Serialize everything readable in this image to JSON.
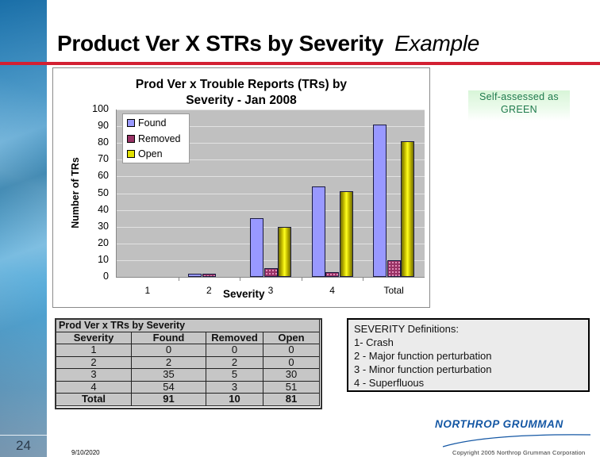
{
  "slide": {
    "title": "Product Ver X STRs by Severity",
    "title_suffix": "Example",
    "page_number": "24",
    "date": "9/10/2020",
    "copyright": "Copyright 2005 Northrop Grumman Corporation",
    "logo_text": "NORTHROP GRUMMAN",
    "accent_color": "#d32032"
  },
  "status_label": {
    "line1": "Self-assessed as",
    "line2": "GREEN",
    "color": "#1e7a4c"
  },
  "chart_data": {
    "type": "bar",
    "title": "Prod Ver x Trouble Reports (TRs) by Severity - Jan 2008",
    "title_line1": "Prod Ver x Trouble Reports (TRs) by",
    "title_line2": "Severity - Jan  2008",
    "xlabel": "Severity",
    "ylabel": "Number of TRs",
    "ylim": [
      0,
      100
    ],
    "yticks": [
      "100",
      "90",
      "80",
      "70",
      "60",
      "50",
      "40",
      "30",
      "20",
      "10",
      "0"
    ],
    "grid": true,
    "legend_position": "upper-left",
    "categories": [
      "1",
      "2",
      "3",
      "4",
      "Total"
    ],
    "series": [
      {
        "name": "Found",
        "color": "#9999ff",
        "values": [
          0,
          2,
          35,
          54,
          91
        ]
      },
      {
        "name": "Removed",
        "color": "#993366",
        "values": [
          0,
          2,
          5,
          3,
          10
        ]
      },
      {
        "name": "Open",
        "color": "#cccc00",
        "values": [
          0,
          0,
          30,
          51,
          81
        ]
      }
    ]
  },
  "table": {
    "caption": "Prod Ver x TRs by Severity",
    "headers": [
      "Severity",
      "Found",
      "Removed",
      "Open"
    ],
    "rows": [
      [
        "1",
        "0",
        "0",
        "0"
      ],
      [
        "2",
        "2",
        "2",
        "0"
      ],
      [
        "3",
        "35",
        "5",
        "30"
      ],
      [
        "4",
        "54",
        "3",
        "51"
      ]
    ],
    "total": [
      "Total",
      "91",
      "10",
      "81"
    ]
  },
  "definitions": {
    "heading": "SEVERITY Definitions:",
    "items": [
      "1- Crash",
      "2 - Major function perturbation",
      "3 - Minor function perturbation",
      "4 - Superfluous"
    ]
  }
}
